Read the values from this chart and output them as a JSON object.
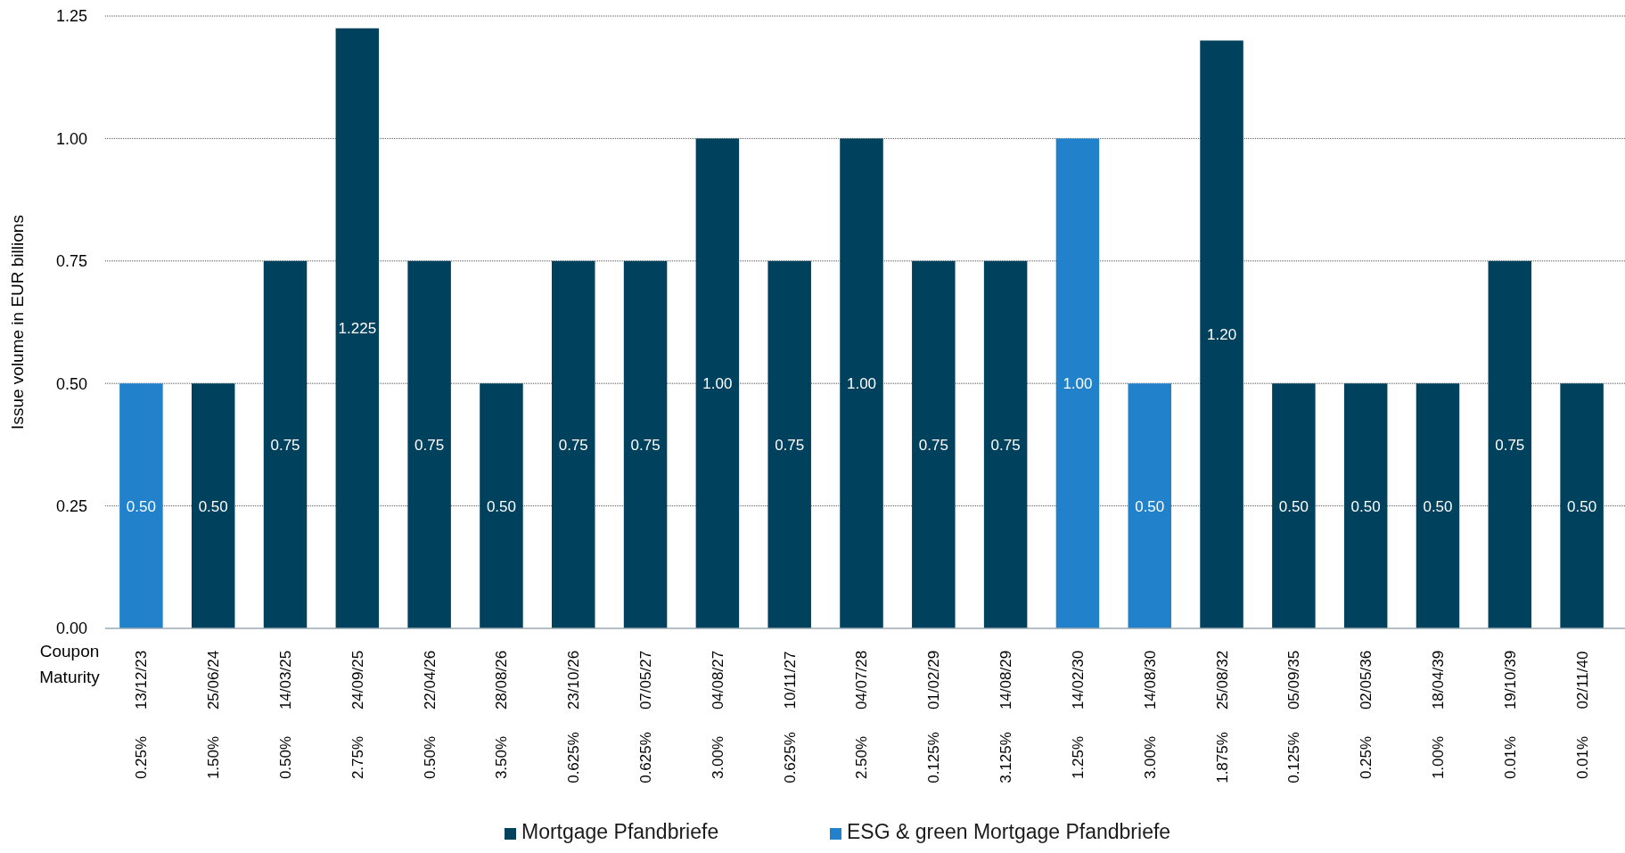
{
  "chart_data": {
    "type": "bar",
    "ylabel": "Issue volume in EUR billions",
    "categories": [
      "13/12/23 0.25%",
      "25/06/24 1.50%",
      "14/03/25 0.50%",
      "24/09/25 2.75%",
      "22/04/26 0.50%",
      "28/08/26 3.50%",
      "23/10/26 0.625%",
      "07/05/27 0.625%",
      "04/08/27 3.00%",
      "10/11/27 0.625%",
      "04/07/28 2.50%",
      "01/02/29 0.125%",
      "14/08/29 3.125%",
      "14/02/30 1.25%",
      "14/08/30 3.00%",
      "25/08/32 1.875%",
      "05/09/35 0.125%",
      "02/05/36 0.25%",
      "18/04/39 1.00%",
      "19/10/39 0.01%",
      "02/11/40 0.01%"
    ],
    "series": [
      {
        "name": "Mortgage Pfandbriefe",
        "color": "#00415e",
        "values": [
          null,
          0.5,
          0.75,
          1.225,
          0.75,
          0.5,
          0.75,
          0.75,
          1.0,
          0.75,
          1.0,
          0.75,
          0.75,
          null,
          null,
          1.2,
          0.5,
          0.5,
          0.5,
          0.75,
          0.5
        ],
        "value_labels": [
          null,
          "0.50",
          "0.75",
          "1.225",
          "0.75",
          "0.50",
          "0.75",
          "0.75",
          "1.00",
          "0.75",
          "1.00",
          "0.75",
          "0.75",
          null,
          null,
          "1.20",
          "0.50",
          "0.50",
          "0.50",
          "0.75",
          "0.50"
        ]
      },
      {
        "name": "ESG & green Mortgage Pfandbriefe",
        "color": "#2182cb",
        "values": [
          0.5,
          null,
          null,
          null,
          null,
          null,
          null,
          null,
          null,
          null,
          null,
          null,
          null,
          1.0,
          0.5,
          null,
          null,
          null,
          null,
          null,
          null
        ],
        "value_labels": [
          "0.50",
          null,
          null,
          null,
          null,
          null,
          null,
          null,
          null,
          null,
          null,
          null,
          null,
          "1.00",
          "0.50",
          null,
          null,
          null,
          null,
          null,
          null
        ]
      }
    ],
    "ylim": [
      0,
      1.25
    ],
    "yticks": [
      {
        "value": 0,
        "label": "0.00"
      },
      {
        "value": 0.25,
        "label": "0.25"
      },
      {
        "value": 0.5,
        "label": "0.50"
      },
      {
        "value": 0.75,
        "label": "0.75"
      },
      {
        "value": 1.0,
        "label": "1.00"
      },
      {
        "value": 1.25,
        "label": "1.25"
      }
    ],
    "grid": "y",
    "legend": "bottom",
    "annotations": [
      "Coupon",
      "Maturity"
    ]
  }
}
